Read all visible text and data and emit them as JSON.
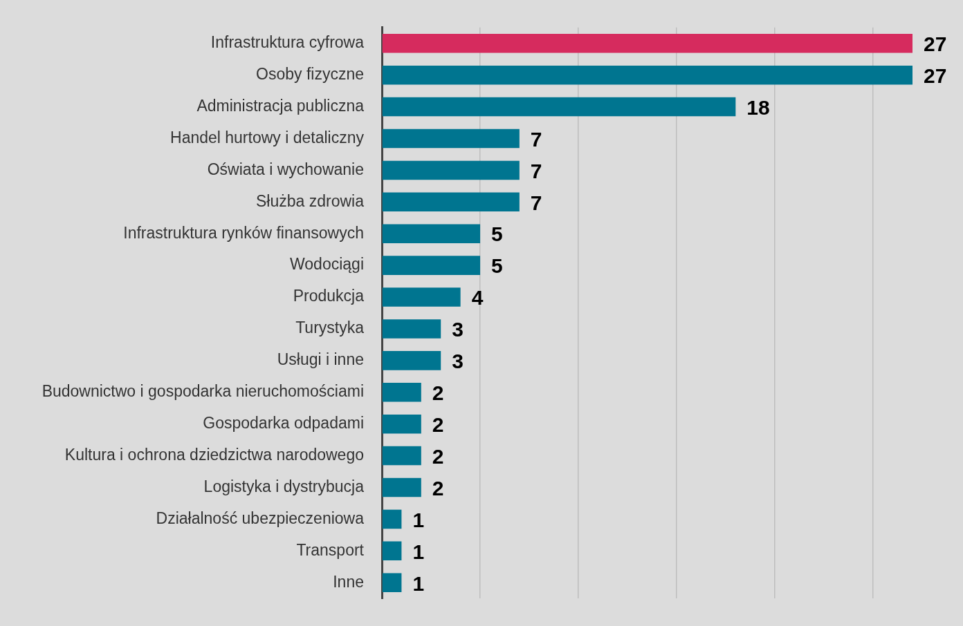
{
  "chart_data": {
    "type": "bar",
    "orientation": "horizontal",
    "categories": [
      "Infrastruktura cyfrowa",
      "Osoby fizyczne",
      "Administracja publiczna",
      "Handel hurtowy i detaliczny",
      "Oświata i wychowanie",
      "Służba zdrowia",
      "Infrastruktura rynków finansowych",
      "Wodociągi",
      "Produkcja",
      "Turystyka",
      "Usługi i inne",
      "Budownictwo i gospodarka nieruchomościami",
      "Gospodarka odpadami",
      "Kultura i ochrona dziedzictwa narodowego",
      "Logistyka i dystrybucja",
      "Działalność ubezpieczeniowa",
      "Transport",
      "Inne"
    ],
    "values": [
      27,
      27,
      18,
      7,
      7,
      7,
      5,
      5,
      4,
      3,
      3,
      2,
      2,
      2,
      2,
      1,
      1,
      1
    ],
    "colors": [
      "#d62b5e",
      "#007590",
      "#007590",
      "#007590",
      "#007590",
      "#007590",
      "#007590",
      "#007590",
      "#007590",
      "#007590",
      "#007590",
      "#007590",
      "#007590",
      "#007590",
      "#007590",
      "#007590",
      "#007590",
      "#007590"
    ],
    "xticks": [
      {
        "value": 0,
        "label": null
      },
      {
        "value": 5,
        "label": null
      },
      {
        "value": 10,
        "label": null
      },
      {
        "value": 15,
        "label": null
      },
      {
        "value": 20,
        "label": null
      },
      {
        "value": 25,
        "label": null
      }
    ],
    "grid": "x",
    "tick_labels": "y",
    "data_labels": true,
    "legend": false
  }
}
